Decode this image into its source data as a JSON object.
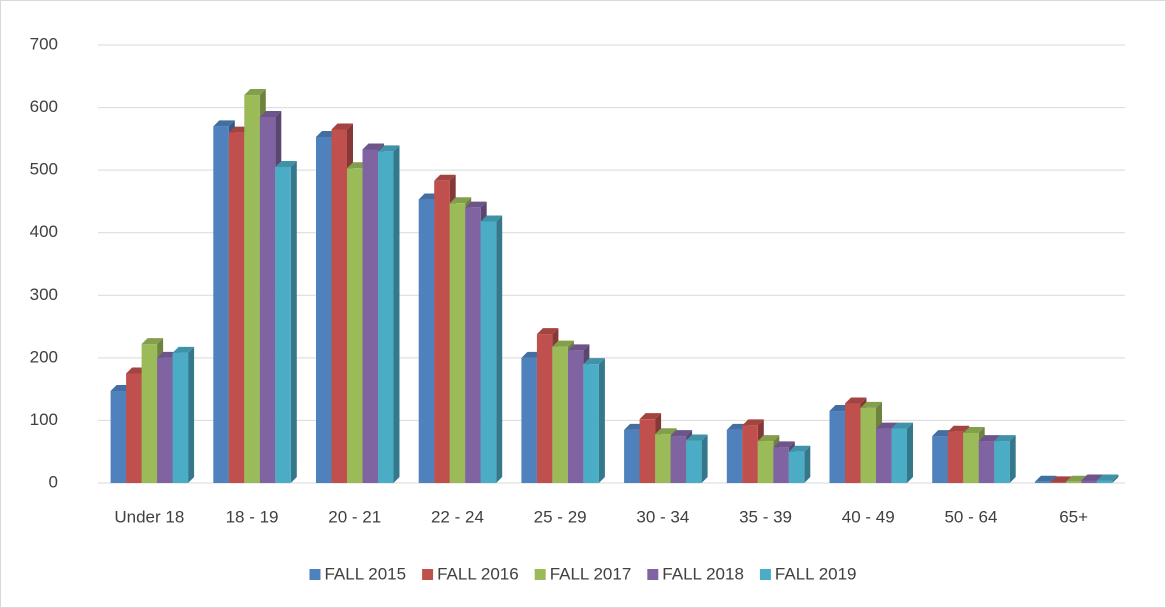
{
  "chart_data": {
    "type": "bar",
    "categories": [
      "Under 18",
      "18 - 19",
      "20 - 21",
      "22 - 24",
      "25 - 29",
      "30 - 34",
      "35 - 39",
      "40 - 49",
      "50 - 64",
      "65+"
    ],
    "series": [
      {
        "name": "FALL 2015",
        "color": "#4f81bd",
        "values": [
          147,
          570,
          553,
          453,
          200,
          85,
          85,
          115,
          75,
          2
        ]
      },
      {
        "name": "FALL 2016",
        "color": "#c0504d",
        "values": [
          175,
          560,
          565,
          483,
          238,
          102,
          92,
          127,
          82,
          1
        ]
      },
      {
        "name": "FALL 2017",
        "color": "#9bbb59",
        "values": [
          222,
          620,
          503,
          447,
          218,
          78,
          67,
          120,
          80,
          2
        ]
      },
      {
        "name": "FALL 2018",
        "color": "#8064a2",
        "values": [
          200,
          585,
          533,
          440,
          212,
          75,
          57,
          87,
          67,
          4
        ]
      },
      {
        "name": "FALL 2019",
        "color": "#4bacc6",
        "values": [
          208,
          505,
          530,
          418,
          190,
          68,
          50,
          87,
          67,
          4
        ]
      }
    ],
    "ylim": [
      0,
      700
    ],
    "yticks": [
      0,
      100,
      200,
      300,
      400,
      500,
      600,
      700
    ],
    "grid": true,
    "legend": "bottom"
  }
}
